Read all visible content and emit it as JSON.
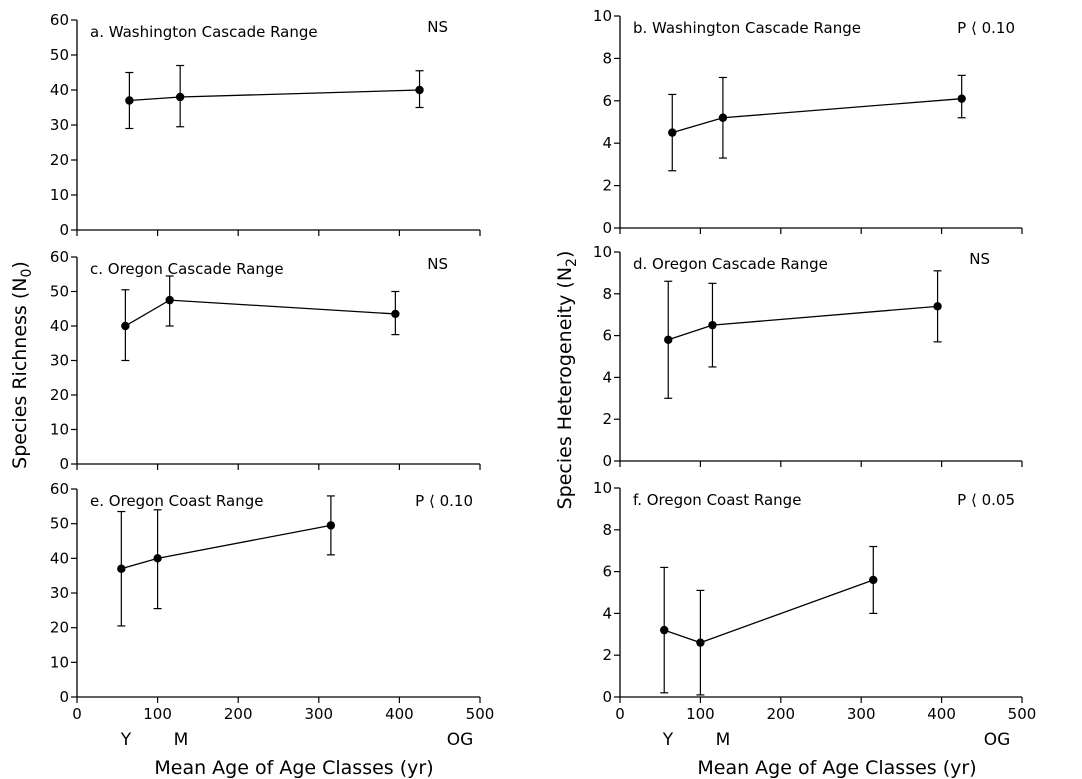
{
  "figure": {
    "left_ylabel_main": "Species Richness (N",
    "left_ylabel_sub": "0",
    "left_ylabel_close": ")",
    "right_ylabel_main": "Species Heterogeneity (N",
    "right_ylabel_sub": "2",
    "right_ylabel_close": ")",
    "xlabel": "Mean Age of Age Classes (yr)",
    "age_class_labels": [
      "Y",
      "M",
      "OG"
    ]
  },
  "chart_data": [
    {
      "type": "line",
      "panel": "a",
      "title": "a.  Washington Cascade Range",
      "stat": "NS",
      "x": [
        65,
        128,
        425
      ],
      "y": [
        37,
        38,
        40
      ],
      "err_low": [
        29,
        29.5,
        35
      ],
      "err_high": [
        45,
        47,
        45.5
      ],
      "xlim": [
        0,
        500
      ],
      "ylim": [
        0,
        60
      ],
      "yticks": [
        0,
        10,
        20,
        30,
        40,
        50,
        60
      ],
      "xticks": [
        0,
        100,
        200,
        300,
        400,
        500
      ],
      "show_xtick_labels": false
    },
    {
      "type": "line",
      "panel": "b",
      "title": "b.  Washington Cascade Range",
      "stat": "P ⟨ 0.10",
      "x": [
        65,
        128,
        425
      ],
      "y": [
        4.5,
        5.2,
        6.1
      ],
      "err_low": [
        2.7,
        3.3,
        5.2
      ],
      "err_high": [
        6.3,
        7.1,
        7.2
      ],
      "xlim": [
        0,
        500
      ],
      "ylim": [
        0,
        10
      ],
      "yticks": [
        0,
        2,
        4,
        6,
        8,
        10
      ],
      "xticks": [
        0,
        100,
        200,
        300,
        400,
        500
      ],
      "show_xtick_labels": false
    },
    {
      "type": "line",
      "panel": "c",
      "title": "c.  Oregon Cascade Range",
      "stat": "NS",
      "x": [
        60,
        115,
        395
      ],
      "y": [
        40,
        47.5,
        43.5
      ],
      "err_low": [
        30,
        40,
        37.5
      ],
      "err_high": [
        50.5,
        54.5,
        50
      ],
      "xlim": [
        0,
        500
      ],
      "ylim": [
        0,
        60
      ],
      "yticks": [
        0,
        10,
        20,
        30,
        40,
        50,
        60
      ],
      "xticks": [
        0,
        100,
        200,
        300,
        400,
        500
      ],
      "show_xtick_labels": false
    },
    {
      "type": "line",
      "panel": "d",
      "title": "d.  Oregon Cascade Range",
      "stat": "NS",
      "x": [
        60,
        115,
        395
      ],
      "y": [
        5.8,
        6.5,
        7.4
      ],
      "err_low": [
        3,
        4.5,
        5.7
      ],
      "err_high": [
        8.6,
        8.5,
        9.1
      ],
      "xlim": [
        0,
        500
      ],
      "ylim": [
        0,
        10
      ],
      "yticks": [
        0,
        2,
        4,
        6,
        8,
        10
      ],
      "xticks": [
        0,
        100,
        200,
        300,
        400,
        500
      ],
      "show_xtick_labels": false
    },
    {
      "type": "line",
      "panel": "e",
      "title": "e.  Oregon Coast Range",
      "stat": "P ⟨ 0.10",
      "x": [
        55,
        100,
        315
      ],
      "y": [
        37,
        40,
        49.5
      ],
      "err_low": [
        20.5,
        25.5,
        41
      ],
      "err_high": [
        53.5,
        54,
        58
      ],
      "xlim": [
        0,
        500
      ],
      "ylim": [
        0,
        60
      ],
      "yticks": [
        0,
        10,
        20,
        30,
        40,
        50,
        60
      ],
      "xticks": [
        0,
        100,
        200,
        300,
        400,
        500
      ],
      "show_xtick_labels": true
    },
    {
      "type": "line",
      "panel": "f",
      "title": "f.  Oregon Coast Range",
      "stat": "P ⟨ 0.05",
      "x": [
        55,
        100,
        315
      ],
      "y": [
        3.2,
        2.6,
        5.6
      ],
      "err_low": [
        0.2,
        0.1,
        4
      ],
      "err_high": [
        6.2,
        5.1,
        7.2
      ],
      "xlim": [
        0,
        500
      ],
      "ylim": [
        0,
        10
      ],
      "yticks": [
        0,
        2,
        4,
        6,
        8,
        10
      ],
      "xticks": [
        0,
        100,
        200,
        300,
        400,
        500
      ],
      "show_xtick_labels": true
    }
  ]
}
